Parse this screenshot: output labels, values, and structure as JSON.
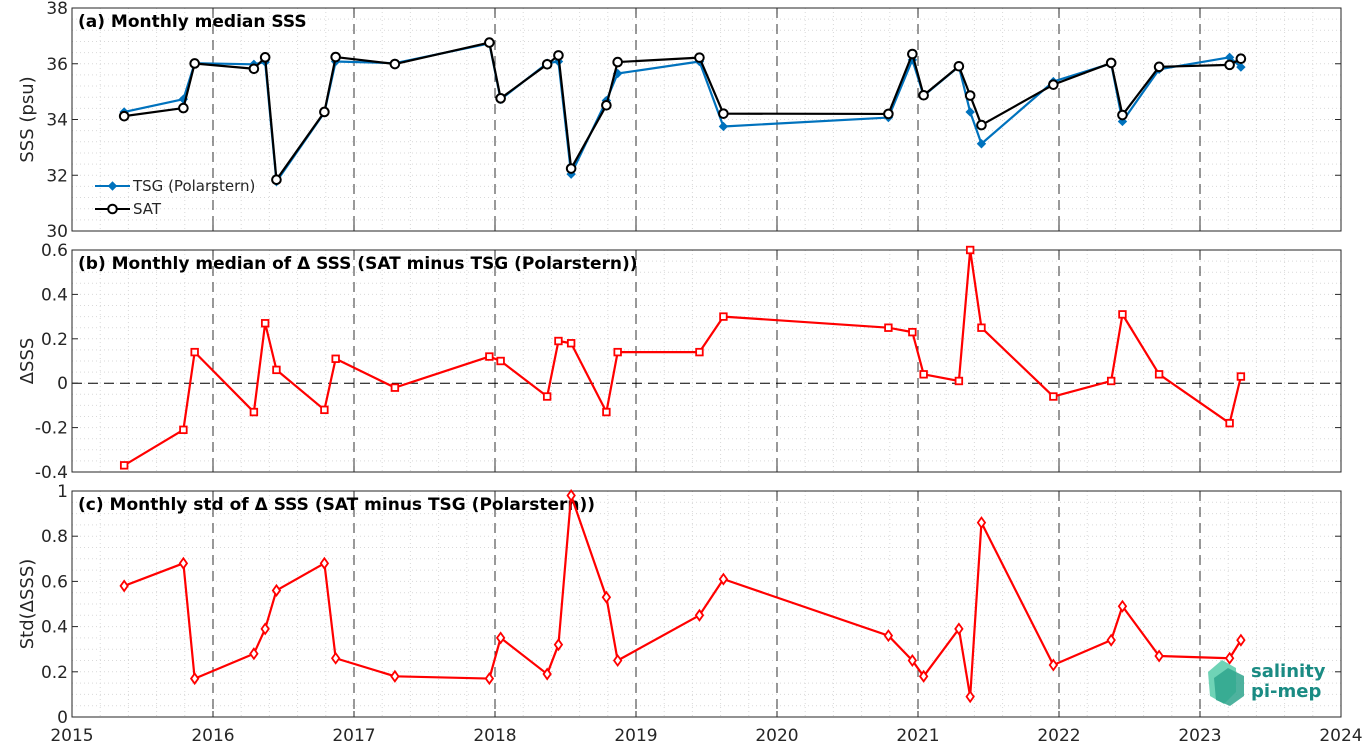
{
  "chart_data": [
    {
      "type": "line",
      "title": "(a) Monthly median SSS",
      "ylabel": "SSS (psu)",
      "xlim": [
        2015,
        2024
      ],
      "ylim": [
        30,
        38
      ],
      "x_ticks": [
        "2015",
        "2016",
        "2017",
        "2018",
        "2019",
        "2020",
        "2021",
        "2022",
        "2023",
        "2024"
      ],
      "y_ticks": [
        "30",
        "32",
        "34",
        "36",
        "38"
      ],
      "grid": "minor dotted",
      "legend": "bottom-left",
      "series": [
        {
          "name": "TSG (Polarstern)",
          "color": "#0072bd",
          "marker": "diamond",
          "x": [
            2015.37,
            2015.79,
            2015.87,
            2016.29,
            2016.37,
            2016.45,
            2016.79,
            2016.87,
            2017.29,
            2017.96,
            2018.04,
            2018.37,
            2018.45,
            2018.54,
            2018.79,
            2018.87,
            2019.45,
            2019.62,
            2020.79,
            2020.96,
            2021.04,
            2021.29,
            2021.37,
            2021.45,
            2021.96,
            2022.37,
            2022.45,
            2022.71,
            2023.21,
            2023.29
          ],
          "y": [
            34.27,
            34.73,
            36.02,
            35.98,
            36.06,
            31.77,
            34.25,
            36.08,
            36.02,
            36.73,
            34.72,
            36.02,
            36.08,
            32.04,
            34.68,
            35.65,
            36.08,
            33.75,
            34.07,
            36.14,
            34.85,
            35.9,
            34.27,
            33.13,
            35.36,
            36.01,
            33.93,
            35.8,
            36.23,
            35.88
          ]
        },
        {
          "name": "SAT",
          "color": "#000000",
          "marker": "circle",
          "x": [
            2015.37,
            2015.79,
            2015.87,
            2016.29,
            2016.37,
            2016.45,
            2016.79,
            2016.87,
            2017.29,
            2017.96,
            2018.04,
            2018.37,
            2018.45,
            2018.54,
            2018.79,
            2018.87,
            2019.45,
            2019.62,
            2020.79,
            2020.96,
            2021.04,
            2021.29,
            2021.37,
            2021.45,
            2021.96,
            2022.37,
            2022.45,
            2022.71,
            2023.21,
            2023.29
          ],
          "y": [
            34.12,
            34.41,
            36.01,
            35.82,
            36.23,
            31.84,
            34.27,
            36.24,
            35.99,
            36.76,
            34.76,
            35.98,
            36.3,
            32.24,
            34.51,
            36.06,
            36.22,
            34.21,
            34.2,
            36.35,
            34.87,
            35.91,
            34.86,
            33.8,
            35.25,
            36.03,
            34.16,
            35.89,
            35.96,
            36.18
          ]
        }
      ]
    },
    {
      "type": "line",
      "title": "(b) Monthly median of Δ SSS (SAT minus TSG (Polarstern))",
      "ylabel": "ΔSSS",
      "xlim": [
        2015,
        2024
      ],
      "ylim": [
        -0.4,
        0.6
      ],
      "x_ticks": [],
      "y_ticks": [
        "-0.4",
        "-0.2",
        "0",
        "0.2",
        "0.4",
        "0.6"
      ],
      "grid": "minor dotted",
      "reference_line": 0,
      "series": [
        {
          "color": "#ff0000",
          "marker": "square",
          "x": [
            2015.37,
            2015.79,
            2015.87,
            2016.29,
            2016.37,
            2016.45,
            2016.79,
            2016.87,
            2017.29,
            2017.96,
            2018.04,
            2018.37,
            2018.45,
            2018.54,
            2018.79,
            2018.87,
            2019.45,
            2019.62,
            2020.79,
            2020.96,
            2021.04,
            2021.29,
            2021.37,
            2021.45,
            2021.96,
            2022.37,
            2022.45,
            2022.71,
            2023.21,
            2023.29
          ],
          "y": [
            -0.37,
            -0.21,
            0.14,
            -0.13,
            0.27,
            0.06,
            -0.12,
            0.11,
            -0.02,
            0.12,
            0.1,
            -0.06,
            0.19,
            0.18,
            -0.13,
            0.14,
            0.14,
            0.3,
            0.25,
            0.23,
            0.04,
            0.01,
            0.6,
            0.25,
            -0.06,
            0.01,
            0.31,
            0.04,
            -0.18,
            0.03
          ]
        }
      ]
    },
    {
      "type": "line",
      "title": "(c) Monthly std of Δ SSS (SAT minus TSG (Polarstern))",
      "ylabel": "Std(ΔSSS)",
      "xlim": [
        2015,
        2024
      ],
      "ylim": [
        0,
        1
      ],
      "x_ticks": [
        "2015",
        "2016",
        "2017",
        "2018",
        "2019",
        "2020",
        "2021",
        "2022",
        "2023",
        "2024"
      ],
      "y_ticks": [
        "0",
        "0.2",
        "0.4",
        "0.6",
        "0.8",
        "1"
      ],
      "grid": "minor dotted",
      "series": [
        {
          "color": "#ff0000",
          "marker": "diamond",
          "x": [
            2015.37,
            2015.79,
            2015.87,
            2016.29,
            2016.37,
            2016.45,
            2016.79,
            2016.87,
            2017.29,
            2017.96,
            2018.04,
            2018.37,
            2018.45,
            2018.54,
            2018.79,
            2018.87,
            2019.45,
            2019.62,
            2020.79,
            2020.96,
            2021.04,
            2021.29,
            2021.37,
            2021.45,
            2021.96,
            2022.37,
            2022.45,
            2022.71,
            2023.21,
            2023.29
          ],
          "y": [
            0.58,
            0.68,
            0.17,
            0.28,
            0.39,
            0.56,
            0.68,
            0.26,
            0.18,
            0.17,
            0.35,
            0.19,
            0.32,
            0.98,
            0.53,
            0.25,
            0.45,
            0.61,
            0.36,
            0.25,
            0.18,
            0.39,
            0.09,
            0.86,
            0.23,
            0.34,
            0.49,
            0.27,
            0.26,
            0.34
          ]
        }
      ]
    }
  ],
  "logo": {
    "line1": "salinity",
    "line2": "pi-mep",
    "color": "#1a8b83"
  }
}
